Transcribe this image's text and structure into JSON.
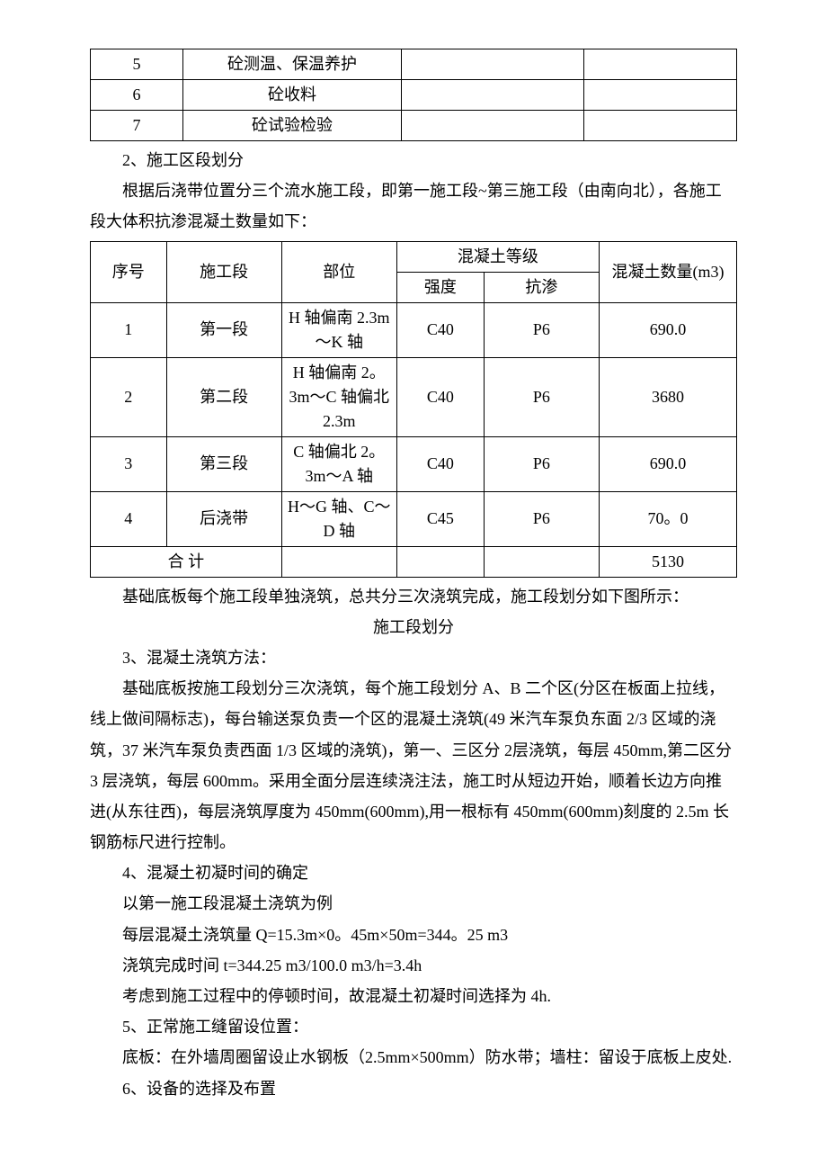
{
  "table1": {
    "rows": [
      {
        "num": "5",
        "name": "砼测温、保温养护"
      },
      {
        "num": "6",
        "name": "砼收料"
      },
      {
        "num": "7",
        "name": "砼试验检验"
      }
    ]
  },
  "section2": {
    "title": "2、施工区段划分",
    "intro": "根据后浇带位置分三个流水施工段，即第一施工段~第三施工段（由南向北），各施工段大体积抗渗混凝土数量如下："
  },
  "table2": {
    "headers": {
      "seq": "序号",
      "seg": "施工段",
      "part": "部位",
      "grade": "混凝土等级",
      "strength": "强度",
      "perm": "抗渗",
      "qty": "混凝土数量(m3)"
    },
    "rows": [
      {
        "seq": "1",
        "seg": "第一段",
        "part": "H 轴偏南 2.3m～K 轴",
        "strength": "C40",
        "perm": "P6",
        "qty": "690.0"
      },
      {
        "seq": "2",
        "seg": "第二段",
        "part": "H 轴偏南 2。3m～C 轴偏北 2.3m",
        "strength": "C40",
        "perm": "P6",
        "qty": "3680"
      },
      {
        "seq": "3",
        "seg": "第三段",
        "part": "C 轴偏北 2。3m～A 轴",
        "strength": "C40",
        "perm": "P6",
        "qty": "690.0"
      },
      {
        "seq": "4",
        "seg": "后浇带",
        "part": "H～G 轴、C～D 轴",
        "strength": "C45",
        "perm": "P6",
        "qty": "70。0"
      }
    ],
    "total_label": "合 计",
    "total": "5130"
  },
  "after_table2": "基础底板每个施工段单独浇筑，总共分三次浇筑完成，施工段划分如下图所示：",
  "caption": "施工段划分",
  "section3": {
    "title": "3、混凝土浇筑方法：",
    "body": "基础底板按施工段划分三次浇筑，每个施工段划分 A、B 二个区(分区在板面上拉线，线上做间隔标志)，每台输送泵负责一个区的混凝土浇筑(49 米汽车泵负东面 2/3 区域的浇筑，37 米汽车泵负责西面 1/3 区域的浇筑)，第一、三区分 2层浇筑，每层 450mm,第二区分 3 层浇筑，每层 600mm。采用全面分层连续浇注法，施工时从短边开始，顺着长边方向推进(从东往西)，每层浇筑厚度为 450mm(600mm),用一根标有 450mm(600mm)刻度的 2.5m 长钢筋标尺进行控制。"
  },
  "section4": {
    "title": "4、混凝土初凝时间的确定",
    "lines": [
      "以第一施工段混凝土浇筑为例",
      "每层混凝土浇筑量 Q=15.3m×0。45m×50m=344。25 m3",
      "浇筑完成时间 t=344.25 m3/100.0 m3/h=3.4h",
      "考虑到施工过程中的停顿时间，故混凝土初凝时间选择为 4h."
    ]
  },
  "section5": {
    "title": "5、正常施工缝留设位置：",
    "body": "底板：在外墙周圈留设止水钢板（2.5mm×500mm）防水带；墙柱：留设于底板上皮处."
  },
  "section6": {
    "title": "6、设备的选择及布置"
  }
}
